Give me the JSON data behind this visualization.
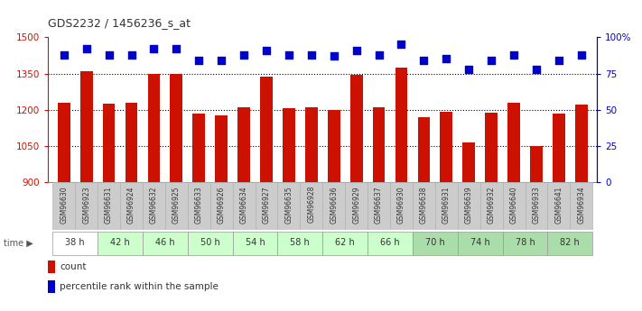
{
  "title": "GDS2232 / 1456236_s_at",
  "samples": [
    "GSM96630",
    "GSM96923",
    "GSM96631",
    "GSM96924",
    "GSM96632",
    "GSM96925",
    "GSM96633",
    "GSM96926",
    "GSM96634",
    "GSM96927",
    "GSM96635",
    "GSM96928",
    "GSM96636",
    "GSM96929",
    "GSM96637",
    "GSM96930",
    "GSM96638",
    "GSM96931",
    "GSM96639",
    "GSM96932",
    "GSM96640",
    "GSM96933",
    "GSM96641",
    "GSM96934"
  ],
  "counts": [
    1228,
    1360,
    1225,
    1228,
    1350,
    1348,
    1183,
    1175,
    1208,
    1338,
    1207,
    1208,
    1200,
    1343,
    1210,
    1375,
    1167,
    1190,
    1063,
    1188,
    1230,
    1050,
    1185,
    1220
  ],
  "percentiles": [
    88,
    92,
    88,
    88,
    92,
    92,
    84,
    84,
    88,
    91,
    88,
    88,
    87,
    91,
    88,
    95,
    84,
    85,
    78,
    84,
    88,
    78,
    84,
    88
  ],
  "time_groups": [
    {
      "label": "38 h",
      "start": 0,
      "end": 2,
      "color": "#ffffff"
    },
    {
      "label": "42 h",
      "start": 2,
      "end": 4,
      "color": "#ccffcc"
    },
    {
      "label": "46 h",
      "start": 4,
      "end": 6,
      "color": "#ccffcc"
    },
    {
      "label": "50 h",
      "start": 6,
      "end": 8,
      "color": "#ccffcc"
    },
    {
      "label": "54 h",
      "start": 8,
      "end": 10,
      "color": "#ccffcc"
    },
    {
      "label": "58 h",
      "start": 10,
      "end": 12,
      "color": "#ccffcc"
    },
    {
      "label": "62 h",
      "start": 12,
      "end": 14,
      "color": "#ccffcc"
    },
    {
      "label": "66 h",
      "start": 14,
      "end": 16,
      "color": "#ccffcc"
    },
    {
      "label": "70 h",
      "start": 16,
      "end": 18,
      "color": "#aaddaa"
    },
    {
      "label": "74 h",
      "start": 18,
      "end": 20,
      "color": "#aaddaa"
    },
    {
      "label": "78 h",
      "start": 20,
      "end": 22,
      "color": "#aaddaa"
    },
    {
      "label": "82 h",
      "start": 22,
      "end": 24,
      "color": "#aaddaa"
    }
  ],
  "bar_color": "#cc1100",
  "dot_color": "#0000cc",
  "ylim_left": [
    900,
    1500
  ],
  "ylim_right": [
    0,
    100
  ],
  "yticks_left": [
    900,
    1050,
    1200,
    1350,
    1500
  ],
  "yticks_right": [
    0,
    25,
    50,
    75,
    100
  ],
  "bar_width": 0.55,
  "dot_size": 40,
  "sample_row_bg": "#cccccc"
}
